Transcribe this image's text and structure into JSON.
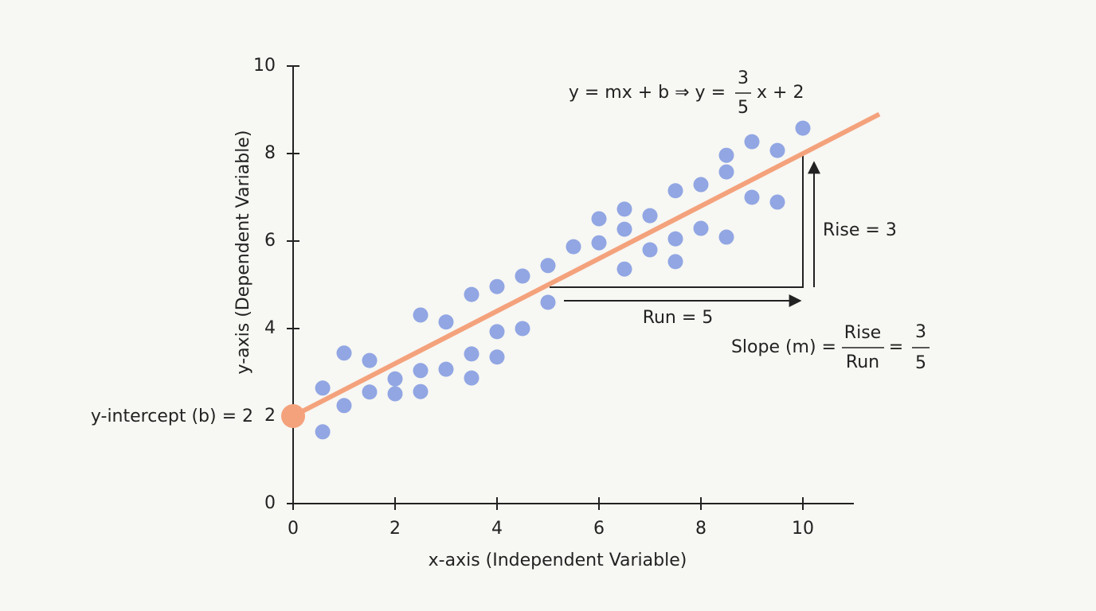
{
  "chart_data": {
    "type": "scatter",
    "x_label": "x-axis (Independent Variable)",
    "y_label": "y-axis (Dependent Variable)",
    "xlim": [
      0,
      11
    ],
    "ylim": [
      0,
      10
    ],
    "xticks": [
      0,
      2,
      4,
      6,
      8,
      10
    ],
    "yticks": [
      0,
      2,
      4,
      6,
      8,
      10
    ],
    "grid": false,
    "series": [
      {
        "color": "#91a6e3",
        "x": [
          0.58,
          0.58,
          1.0,
          1.0,
          1.5,
          1.5,
          2.0,
          2.0,
          2.5,
          2.5,
          2.5,
          3.0,
          3.0,
          3.5,
          3.5,
          3.5,
          4.0,
          4.0,
          4.0,
          4.5,
          4.5,
          5.0,
          5.0,
          5.5,
          6.0,
          6.0,
          6.5,
          6.5,
          6.5,
          7.0,
          7.0,
          7.5,
          7.5,
          7.5,
          8.0,
          8.0,
          8.5,
          8.5,
          8.5,
          9.0,
          9.0,
          9.5,
          9.5,
          10.0
        ],
        "y": [
          2.64,
          1.64,
          3.44,
          2.24,
          3.27,
          2.55,
          2.85,
          2.51,
          4.31,
          3.04,
          2.56,
          4.15,
          3.07,
          4.78,
          3.42,
          2.87,
          4.96,
          3.93,
          3.35,
          5.2,
          4.0,
          5.44,
          4.6,
          5.87,
          6.51,
          5.96,
          6.73,
          6.27,
          5.36,
          6.58,
          5.8,
          7.15,
          6.05,
          5.53,
          7.29,
          6.29,
          7.96,
          7.58,
          6.09,
          8.27,
          7.0,
          8.07,
          6.89,
          8.58
        ]
      }
    ],
    "fit_line": {
      "color": "#f4a27c",
      "x": [
        0,
        11.5
      ],
      "y": [
        2,
        8.9
      ]
    },
    "intercept_point": {
      "color": "#f4a27c",
      "x": 0,
      "y": 2
    },
    "annotations": {
      "equation": {
        "left": "y = mx + b ⇒ y = ",
        "numerator": "3",
        "denominator": "5",
        "right": "x + 2"
      },
      "rise": "Rise = 3",
      "run": "Run = 5",
      "slope": {
        "left": "Slope (m) = ",
        "numerator": "Rise",
        "denominator": "Run",
        "equals": "=",
        "value_numerator": "3",
        "value_denominator": "5"
      },
      "intercept": "y-intercept (b) = 2"
    }
  }
}
